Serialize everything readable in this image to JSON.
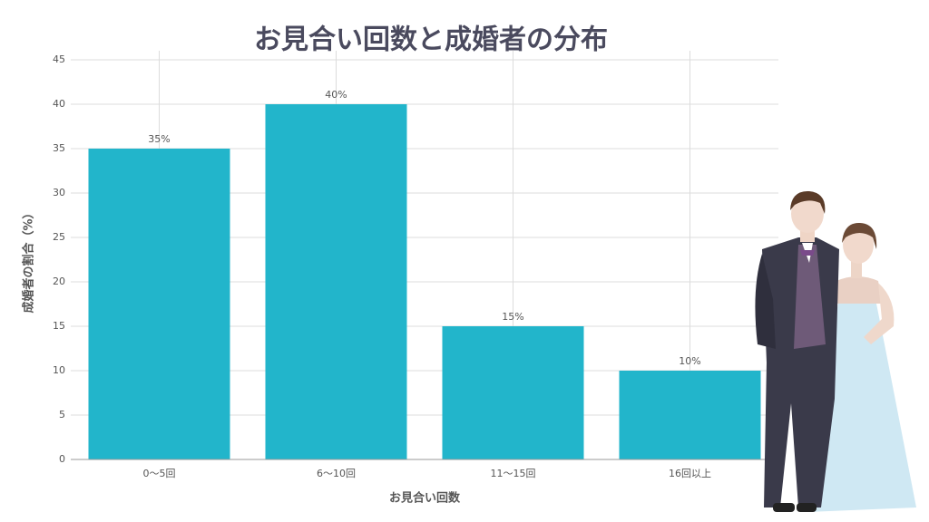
{
  "chart_data": {
    "type": "bar",
    "title": "お見合い回数と成婚者の分布",
    "x_label": "お見合い回数",
    "y_label": "成婚者の割合（%）",
    "categories": [
      "0〜5回",
      "6〜10回",
      "11〜15回",
      "16回以上"
    ],
    "values": [
      35,
      40,
      15,
      10
    ],
    "value_labels": [
      "35%",
      "40%",
      "15%",
      "10%"
    ],
    "color": "#22b5cb",
    "ylim": [
      0,
      45
    ],
    "yticks": [
      0,
      5,
      10,
      15,
      20,
      25,
      30,
      35,
      40,
      45
    ],
    "grid": true
  }
}
